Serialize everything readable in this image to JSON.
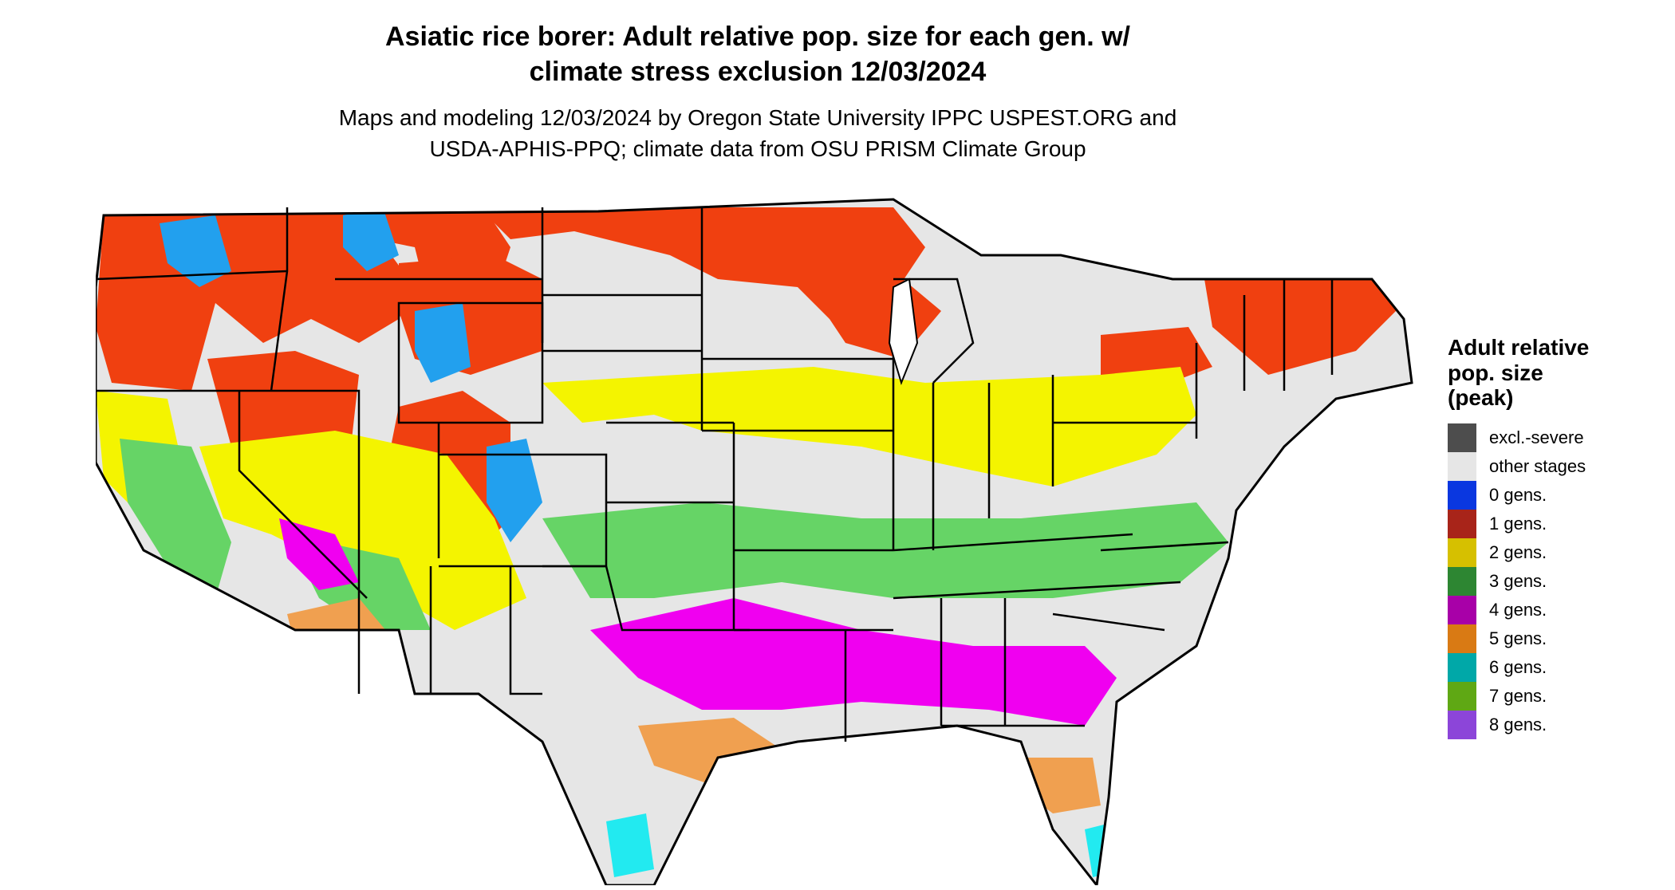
{
  "title_line1": "Asiatic rice borer: Adult relative pop. size for each gen. w/",
  "title_line2": "climate stress exclusion 12/03/2024",
  "subtitle_line1": "Maps and modeling 12/03/2024 by Oregon State University IPPC USPEST.ORG and",
  "subtitle_line2": "USDA-APHIS-PPQ; climate data from OSU PRISM Climate Group",
  "legend": {
    "title_line1": "Adult relative",
    "title_line2": "pop. size",
    "title_line3": "(peak)",
    "items": [
      {
        "label": "excl.-severe",
        "color": "#4d4d4d"
      },
      {
        "label": "other stages",
        "color": "#e6e6e6"
      },
      {
        "label": "0 gens.",
        "color": "#0a37e0"
      },
      {
        "label": "1 gens.",
        "color": "#a82419"
      },
      {
        "label": "2 gens.",
        "color": "#d6c000"
      },
      {
        "label": "3 gens.",
        "color": "#2d8632"
      },
      {
        "label": "4 gens.",
        "color": "#a800a8"
      },
      {
        "label": "5 gens.",
        "color": "#d97a14"
      },
      {
        "label": "6 gens.",
        "color": "#00a8a8"
      },
      {
        "label": "7 gens.",
        "color": "#5fa814"
      },
      {
        "label": "8 gens.",
        "color": "#8c45d9"
      }
    ]
  },
  "map_fill_colors": {
    "land": "#e6e6e6",
    "one_gen_map": "#f04010",
    "zero_gen_map": "#22a0ee",
    "two_gen_map": "#f4f400",
    "three_gen_map": "#66d466",
    "four_gen_map": "#f000f0",
    "five_gen_map": "#f0a050",
    "six_gen_map": "#22eaf0",
    "border": "#000000"
  }
}
